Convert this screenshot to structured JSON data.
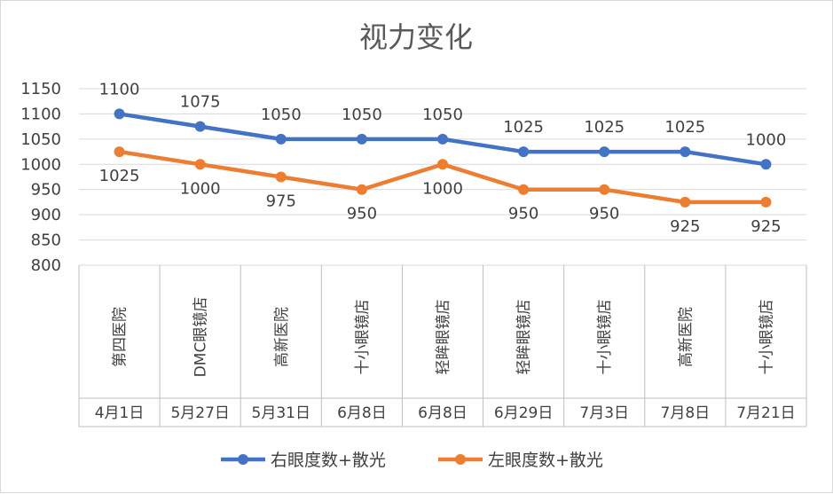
{
  "chart_data": {
    "type": "line",
    "title": "视力变化",
    "categories": [
      {
        "place": "第四医院",
        "date": "4月1日"
      },
      {
        "place": "DMC眼镜店",
        "date": "5月27日"
      },
      {
        "place": "高新医院",
        "date": "5月31日"
      },
      {
        "place": "十小眼镜店",
        "date": "6月8日"
      },
      {
        "place": "轻眸眼镜店",
        "date": "6月8日"
      },
      {
        "place": "轻眸眼镜店",
        "date": "6月29日"
      },
      {
        "place": "十小眼镜店",
        "date": "7月3日"
      },
      {
        "place": "高新医院",
        "date": "7月8日"
      },
      {
        "place": "十小眼镜店",
        "date": "7月21日"
      }
    ],
    "series": [
      {
        "name": "右眼度数+散光",
        "color": "#4472c4",
        "values": [
          1100,
          1075,
          1050,
          1050,
          1050,
          1025,
          1025,
          1025,
          1000
        ]
      },
      {
        "name": "左眼度数+散光",
        "color": "#ed7d31",
        "values": [
          1025,
          1000,
          975,
          950,
          1000,
          950,
          950,
          925,
          925
        ]
      }
    ],
    "ylim": [
      800,
      1150
    ],
    "yticks": [
      800,
      850,
      900,
      950,
      1000,
      1050,
      1100,
      1150
    ],
    "grid": true,
    "legend": "bottom"
  }
}
